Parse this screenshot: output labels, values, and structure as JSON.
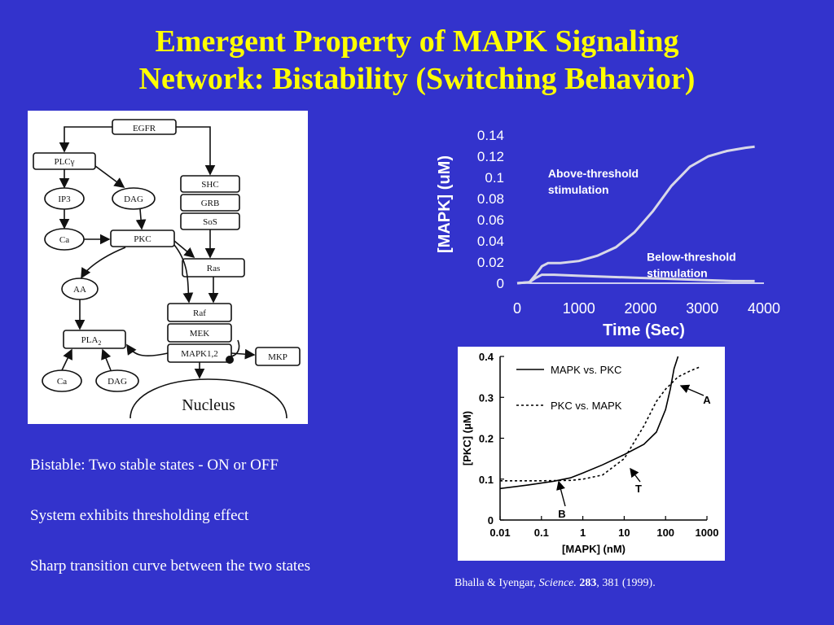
{
  "slide": {
    "title_line1": "Emergent Property of MAPK Signaling",
    "title_line2": "Network: Bistability (Switching Behavior)",
    "bullets": [
      "Bistable: Two stable states - ON or OFF",
      "System exhibits thresholding effect",
      "Sharp transition curve between the two states"
    ],
    "citation": {
      "authors": "Bhalla & Iyengar, ",
      "journal": "Science.",
      "volume": "283",
      "rest": ", 381 (1999)."
    }
  },
  "diagram": {
    "nodes": {
      "egfr": "EGFR",
      "plc": "PLCγ",
      "shc": "SHC",
      "grb": "GRB",
      "sos": "SoS",
      "ip3": "IP3",
      "dag": "DAG",
      "ca": "Ca",
      "pkc": "PKC",
      "ras": "Ras",
      "aa": "AA",
      "raf": "Raf",
      "mek": "MEK",
      "pla2": "PLA",
      "pla2_sub": "2",
      "mapk": "MAPK1,2",
      "mkp": "MKP",
      "ca2": "Ca",
      "dag2": "DAG",
      "nucleus": "Nucleus"
    }
  },
  "chart_data": [
    {
      "type": "line",
      "xlabel": "Time (Sec)",
      "ylabel": "[MAPK] (uM)",
      "xlim": [
        0,
        4000
      ],
      "ylim": [
        0,
        0.14
      ],
      "xticks": [
        "0",
        "1000",
        "2000",
        "3000",
        "4000"
      ],
      "yticks": [
        "0",
        "0.02",
        "0.04",
        "0.06",
        "0.08",
        "0.1",
        "0.12",
        "0.14"
      ],
      "grid": false,
      "series": [
        {
          "name": "Above-threshold stimulation",
          "label_line1": "Above-threshold",
          "label_line2": "stimulation",
          "x": [
            0,
            200,
            300,
            400,
            500,
            700,
            1000,
            1300,
            1600,
            1900,
            2200,
            2500,
            2800,
            3100,
            3400,
            3700,
            3850
          ],
          "y": [
            0,
            0.001,
            0.008,
            0.016,
            0.019,
            0.019,
            0.021,
            0.026,
            0.034,
            0.048,
            0.068,
            0.092,
            0.11,
            0.12,
            0.125,
            0.128,
            0.129
          ]
        },
        {
          "name": "Below-threshold stimulation",
          "label_line1": "Below-threshold",
          "label_line2": "stimulation",
          "x": [
            0,
            200,
            300,
            400,
            600,
            1000,
            1500,
            2000,
            2500,
            3000,
            3500,
            3850
          ],
          "y": [
            0,
            0.001,
            0.005,
            0.008,
            0.008,
            0.007,
            0.006,
            0.005,
            0.004,
            0.003,
            0.002,
            0.002
          ]
        }
      ]
    },
    {
      "type": "line",
      "xlabel": "[MAPK] (nM)",
      "ylabel": "[PKC] (μM)",
      "xscale": "log",
      "xlim": [
        0.01,
        1000
      ],
      "ylim": [
        0,
        0.4
      ],
      "xticks": [
        "0.01",
        "0.1",
        "1",
        "10",
        "100",
        "1000"
      ],
      "yticks": [
        "0",
        "0.1",
        "0.2",
        "0.3",
        "0.4"
      ],
      "grid": false,
      "legend_position": "top-left",
      "annotations": [
        "A",
        "T",
        "B"
      ],
      "series": [
        {
          "name": "MAPK vs. PKC",
          "x": [
            0.01,
            0.05,
            0.2,
            0.5,
            1,
            3,
            10,
            30,
            60,
            100,
            130,
            160,
            200
          ],
          "y": [
            0.077,
            0.086,
            0.095,
            0.103,
            0.115,
            0.135,
            0.16,
            0.185,
            0.215,
            0.27,
            0.32,
            0.37,
            0.4
          ]
        },
        {
          "name": "PKC vs. MAPK",
          "x": [
            0.01,
            0.1,
            0.5,
            1,
            3,
            10,
            30,
            60,
            100,
            200,
            400,
            700
          ],
          "y": [
            0.096,
            0.096,
            0.097,
            0.1,
            0.11,
            0.15,
            0.23,
            0.29,
            0.32,
            0.35,
            0.365,
            0.375
          ]
        }
      ]
    }
  ]
}
